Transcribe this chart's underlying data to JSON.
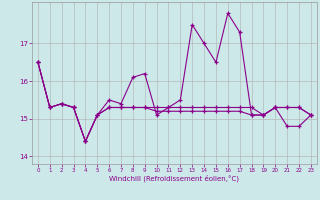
{
  "xlabel": "Windchill (Refroidissement éolien,°C)",
  "bg_color": "#cce8e8",
  "line_color": "#8b008b",
  "grid_color": "#b0b0b0",
  "x": [
    0,
    1,
    2,
    3,
    4,
    5,
    6,
    7,
    8,
    9,
    10,
    11,
    12,
    13,
    14,
    15,
    16,
    17,
    18,
    19,
    20,
    21,
    22,
    23
  ],
  "series1": [
    16.5,
    15.3,
    15.4,
    15.3,
    14.4,
    15.1,
    15.5,
    15.4,
    16.1,
    16.2,
    15.1,
    15.3,
    15.5,
    17.5,
    17.0,
    16.5,
    17.8,
    17.3,
    15.1,
    15.1,
    15.3,
    14.8,
    14.8,
    15.1
  ],
  "series2": [
    16.5,
    15.3,
    15.4,
    15.3,
    14.4,
    15.1,
    15.3,
    15.3,
    15.3,
    15.3,
    15.3,
    15.3,
    15.3,
    15.3,
    15.3,
    15.3,
    15.3,
    15.3,
    15.3,
    15.1,
    15.3,
    15.3,
    15.3,
    15.1
  ],
  "series3": [
    16.5,
    15.3,
    15.4,
    15.3,
    14.4,
    15.1,
    15.3,
    15.3,
    15.3,
    15.3,
    15.2,
    15.2,
    15.2,
    15.2,
    15.2,
    15.2,
    15.2,
    15.2,
    15.1,
    15.1,
    15.3,
    15.3,
    15.3,
    15.1
  ],
  "xlim": [
    -0.5,
    23.5
  ],
  "ylim": [
    13.8,
    18.1
  ],
  "yticks": [
    14,
    15,
    16,
    17
  ],
  "xticks": [
    0,
    1,
    2,
    3,
    4,
    5,
    6,
    7,
    8,
    9,
    10,
    11,
    12,
    13,
    14,
    15,
    16,
    17,
    18,
    19,
    20,
    21,
    22,
    23
  ]
}
